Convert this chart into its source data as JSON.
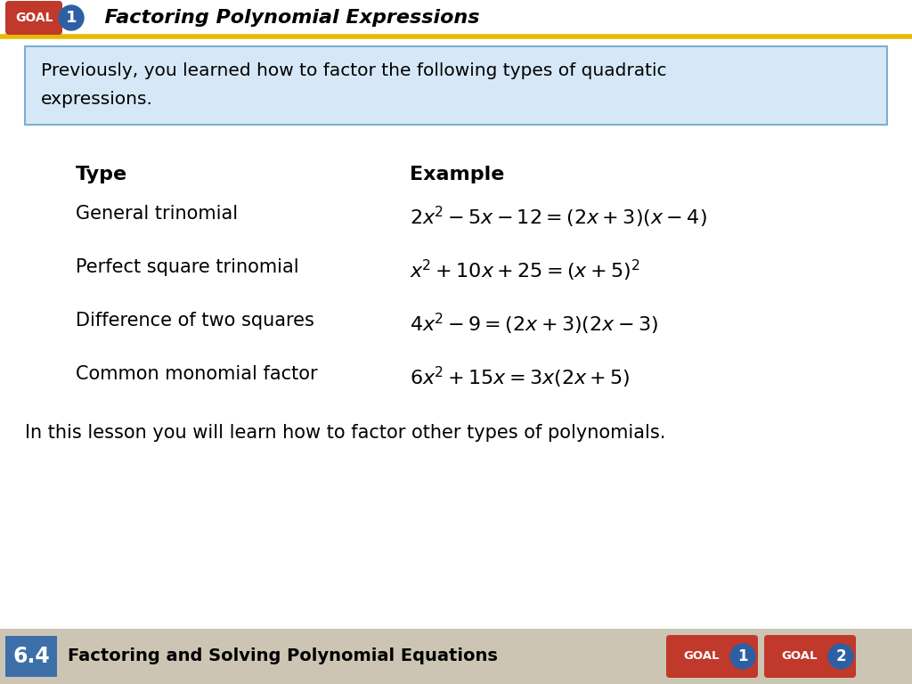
{
  "title": "Factoring Polynomial Expressions",
  "goal_label": "GOAL",
  "goal_number": "1",
  "blue_box_text1": "Previously, you learned how to factor the following types of quadratic",
  "blue_box_text2": "expressions.",
  "col_type": "Type",
  "col_example": "Example",
  "types": [
    "General trinomial",
    "Perfect square trinomial",
    "Difference of two squares",
    "Common monomial factor"
  ],
  "examples_math": [
    "$2\\mathbf{x}^2 - 5\\mathbf{x} - 12 = (2\\mathbf{x} +3)(\\mathbf{x} - 4)$",
    "$\\mathbf{x}^2 + 10\\mathbf{x} + 25 = (\\mathbf{x} + 5)^2$",
    "$4\\mathbf{x}^2 - 9 = (2\\mathbf{x} + 3) (2\\mathbf{x} - 3)$",
    "$6\\mathbf{x}^2 + 15\\mathbf{x} = 3\\mathbf{x}(2\\mathbf{x} + 5)$"
  ],
  "footer_text": "In this lesson you will learn how to factor other types of polynomials.",
  "footer_section_num": "6.4",
  "footer_section_title": "Factoring and Solving Polynomial Equations",
  "bg_color": "#ffffff",
  "blue_box_bg": "#d6e8f7",
  "blue_box_border": "#7bafd4",
  "goal_red_bg": "#c0392b",
  "goal_blue_bg": "#2e5fa3",
  "goal_text_color": "#ffffff",
  "title_color": "#000000",
  "yellow_line_color": "#e8b800",
  "footer_bg": "#cdc5b4",
  "footer_blue_box_bg": "#3d6fa8",
  "footer_text_color": "#000000"
}
